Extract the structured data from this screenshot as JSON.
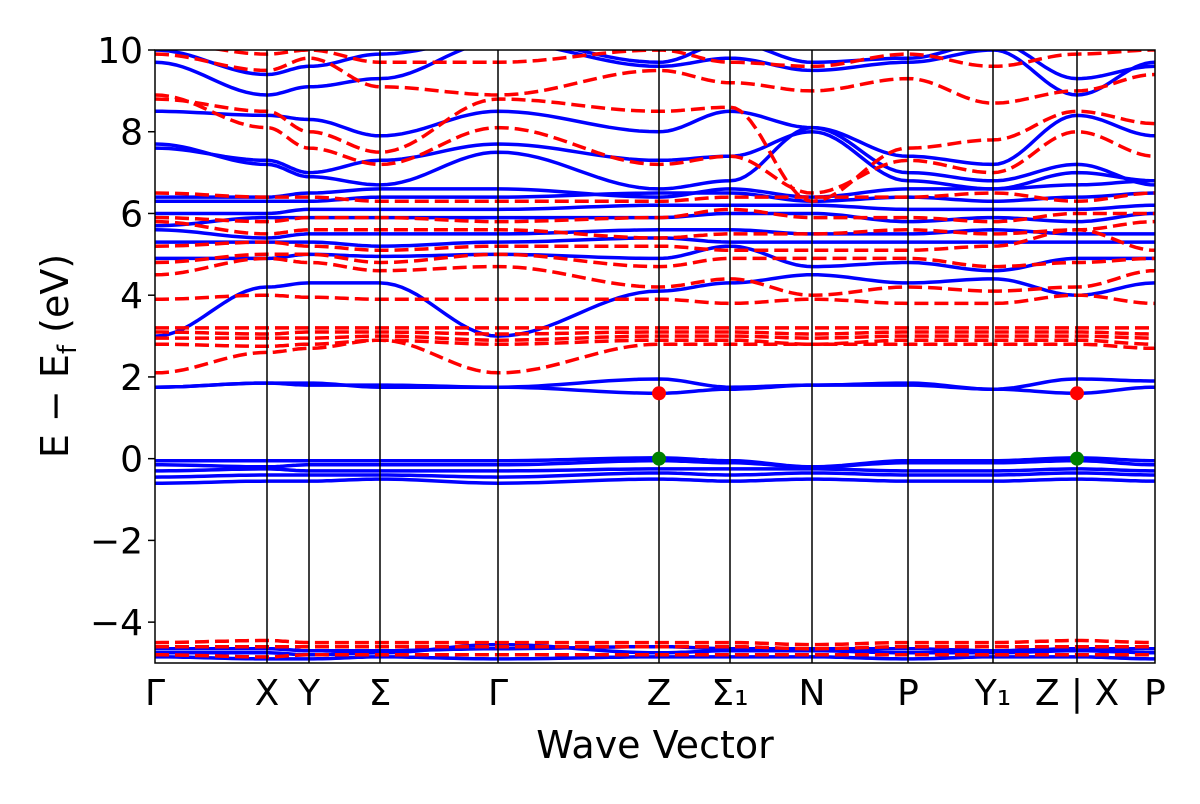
{
  "chart_data": {
    "type": "line",
    "title": "",
    "xlabel": "Wave Vector",
    "ylabel": "E − E",
    "ylabel_subscript": "f",
    "ylabel_unit": "(eV)",
    "ylim": [
      -5,
      10
    ],
    "yticks": [
      -4,
      -2,
      0,
      2,
      4,
      6,
      8,
      10
    ],
    "ytick_labels": [
      "−4",
      "−2",
      "0",
      "2",
      "4",
      "6",
      "8",
      "10"
    ],
    "kpoint_positions": [
      0,
      0.112,
      0.154,
      0.225,
      0.343,
      0.504,
      0.575,
      0.657,
      0.753,
      0.838,
      0.922,
      1.0
    ],
    "kpoint_labels": [
      "Γ",
      "X",
      "Y",
      "Σ",
      "Γ",
      "Z",
      "Σ₁",
      "N",
      "P",
      "Y₁",
      "Z | X",
      "P"
    ],
    "grid": false,
    "legend": "none",
    "series": [
      {
        "color": "#0000ff",
        "style": "solid",
        "bands": [
          [
            -4.85,
            -4.9,
            -4.9,
            -4.85,
            -4.9,
            -4.85,
            -4.85,
            -4.85,
            -4.9,
            -4.85,
            -4.85,
            -4.9
          ],
          [
            -4.75,
            -4.75,
            -4.8,
            -4.75,
            -4.55,
            -4.75,
            -4.7,
            -4.7,
            -4.75,
            -4.75,
            -4.7,
            -4.75
          ],
          [
            -4.65,
            -4.65,
            -4.7,
            -4.7,
            -4.65,
            -4.6,
            -4.65,
            -4.65,
            -4.65,
            -4.7,
            -4.65,
            -4.65
          ],
          [
            -0.6,
            -0.55,
            -0.55,
            -0.5,
            -0.6,
            -0.5,
            -0.55,
            -0.5,
            -0.55,
            -0.55,
            -0.5,
            -0.55
          ],
          [
            -0.45,
            -0.4,
            -0.4,
            -0.4,
            -0.45,
            -0.35,
            -0.4,
            -0.35,
            -0.4,
            -0.4,
            -0.35,
            -0.4
          ],
          [
            -0.3,
            -0.25,
            -0.3,
            -0.3,
            -0.3,
            -0.25,
            -0.25,
            -0.25,
            -0.3,
            -0.3,
            -0.25,
            -0.3
          ],
          [
            -0.15,
            -0.2,
            -0.15,
            -0.15,
            -0.15,
            -0.05,
            -0.1,
            -0.2,
            -0.1,
            -0.1,
            -0.05,
            -0.15
          ],
          [
            -0.05,
            -0.05,
            -0.05,
            -0.05,
            -0.05,
            0.02,
            -0.05,
            -0.2,
            -0.05,
            -0.05,
            0.02,
            -0.05
          ],
          [
            1.75,
            1.85,
            1.85,
            1.75,
            1.75,
            1.95,
            1.75,
            1.8,
            1.85,
            1.7,
            1.95,
            1.9
          ],
          [
            1.75,
            1.85,
            1.8,
            1.8,
            1.75,
            1.6,
            1.7,
            1.8,
            1.8,
            1.7,
            1.6,
            1.75
          ],
          [
            3.0,
            4.2,
            4.3,
            4.3,
            3.0,
            4.1,
            4.3,
            4.5,
            4.3,
            4.4,
            4.0,
            4.3
          ],
          [
            4.9,
            4.9,
            5.0,
            4.95,
            5.0,
            4.9,
            5.2,
            4.7,
            4.8,
            4.6,
            4.9,
            4.9
          ],
          [
            5.3,
            5.3,
            5.3,
            5.2,
            5.3,
            5.4,
            5.3,
            5.3,
            5.3,
            5.3,
            5.3,
            5.3
          ],
          [
            5.6,
            5.4,
            5.5,
            5.5,
            5.5,
            5.6,
            5.6,
            5.5,
            5.5,
            5.6,
            5.5,
            5.5
          ],
          [
            5.7,
            5.9,
            5.9,
            5.9,
            5.9,
            5.9,
            6.0,
            6.0,
            5.8,
            5.9,
            5.8,
            6.0
          ],
          [
            6.0,
            6.0,
            6.1,
            6.1,
            6.1,
            6.2,
            6.2,
            6.2,
            6.1,
            6.1,
            6.1,
            6.2
          ],
          [
            6.3,
            6.3,
            6.3,
            6.4,
            6.4,
            6.5,
            6.5,
            6.3,
            6.4,
            6.3,
            6.4,
            6.5
          ],
          [
            6.4,
            6.4,
            6.5,
            6.6,
            6.6,
            6.4,
            6.6,
            6.4,
            6.6,
            6.6,
            6.7,
            6.8
          ],
          [
            7.7,
            7.2,
            6.9,
            6.7,
            7.5,
            6.6,
            6.8,
            8.1,
            7.0,
            6.8,
            7.2,
            6.7
          ],
          [
            7.6,
            7.3,
            7.0,
            7.3,
            7.7,
            7.3,
            7.4,
            8.0,
            6.8,
            6.6,
            7.0,
            6.8
          ],
          [
            8.5,
            8.4,
            8.3,
            7.9,
            8.5,
            8.0,
            8.5,
            8.1,
            7.4,
            7.2,
            8.4,
            7.9
          ],
          [
            9.7,
            8.9,
            9.1,
            9.3,
            10.2,
            9.6,
            9.8,
            9.5,
            9.7,
            10.0,
            8.9,
            9.7
          ],
          [
            10.0,
            9.4,
            9.6,
            9.9,
            10.3,
            9.7,
            10.2,
            9.7,
            9.8,
            10.2,
            9.3,
            9.6
          ]
        ]
      },
      {
        "color": "#ff0000",
        "style": "dashed",
        "bands": [
          [
            -4.8,
            -4.85,
            -4.8,
            -4.8,
            -4.8,
            -4.8,
            -4.8,
            -4.8,
            -4.8,
            -4.8,
            -4.8,
            -4.8
          ],
          [
            -4.6,
            -4.6,
            -4.6,
            -4.6,
            -4.6,
            -4.6,
            -4.6,
            -4.65,
            -4.6,
            -4.6,
            -4.6,
            -4.6
          ],
          [
            -4.5,
            -4.45,
            -4.5,
            -4.5,
            -4.5,
            -4.5,
            -4.5,
            -4.55,
            -4.5,
            -4.5,
            -4.45,
            -4.5
          ],
          [
            2.1,
            2.6,
            2.7,
            2.9,
            2.1,
            2.8,
            2.8,
            2.8,
            2.8,
            2.8,
            2.8,
            2.7
          ],
          [
            2.8,
            2.75,
            2.8,
            2.9,
            2.8,
            2.9,
            2.9,
            2.8,
            2.9,
            2.9,
            2.9,
            2.8
          ],
          [
            2.95,
            2.95,
            2.95,
            3.0,
            2.9,
            3.0,
            3.0,
            2.95,
            3.0,
            3.0,
            3.0,
            2.95
          ],
          [
            3.1,
            3.05,
            3.1,
            3.1,
            3.05,
            3.1,
            3.1,
            3.05,
            3.1,
            3.1,
            3.1,
            3.05
          ],
          [
            3.2,
            3.2,
            3.2,
            3.2,
            3.2,
            3.2,
            3.2,
            3.2,
            3.2,
            3.2,
            3.2,
            3.2
          ],
          [
            3.9,
            4.0,
            3.95,
            3.9,
            3.9,
            3.9,
            3.8,
            3.9,
            3.8,
            3.8,
            4.0,
            3.8
          ],
          [
            4.5,
            4.9,
            4.8,
            4.6,
            4.7,
            4.2,
            4.4,
            4.0,
            4.2,
            4.1,
            4.2,
            4.6
          ],
          [
            4.8,
            5.0,
            5.0,
            4.8,
            5.0,
            4.7,
            4.9,
            4.9,
            4.9,
            4.7,
            4.8,
            4.9
          ],
          [
            5.2,
            5.3,
            5.2,
            5.1,
            5.2,
            5.2,
            5.1,
            5.1,
            5.1,
            5.2,
            5.6,
            5.1
          ],
          [
            5.8,
            5.5,
            5.6,
            5.6,
            5.6,
            5.4,
            5.5,
            5.5,
            5.6,
            5.5,
            5.6,
            5.8
          ],
          [
            5.9,
            5.8,
            5.9,
            5.9,
            5.8,
            5.9,
            6.1,
            5.9,
            5.9,
            5.8,
            6.0,
            6.0
          ],
          [
            6.5,
            6.4,
            6.4,
            6.3,
            6.3,
            6.3,
            6.4,
            6.4,
            6.4,
            6.5,
            6.3,
            6.5
          ],
          [
            8.9,
            8.1,
            7.6,
            7.2,
            8.1,
            7.2,
            7.4,
            6.5,
            7.3,
            7.0,
            8.0,
            7.4
          ],
          [
            8.8,
            8.5,
            8.0,
            7.5,
            8.8,
            8.5,
            8.6,
            6.3,
            7.6,
            7.8,
            8.5,
            8.2
          ],
          [
            9.9,
            9.5,
            9.8,
            9.1,
            8.9,
            9.5,
            9.2,
            9.0,
            9.3,
            8.7,
            9.0,
            9.4
          ],
          [
            10.2,
            9.9,
            10.0,
            9.7,
            9.7,
            10.0,
            9.7,
            9.6,
            9.9,
            9.6,
            9.9,
            10.0
          ]
        ]
      }
    ],
    "markers": [
      {
        "kpoint": "Z",
        "energy": 1.6,
        "color": "#ff0000"
      },
      {
        "kpoint": "Z",
        "energy": 0.0,
        "color": "#008000"
      },
      {
        "kpoint": "Z | X",
        "energy": 1.6,
        "color": "#ff0000"
      },
      {
        "kpoint": "Z | X",
        "energy": 0.0,
        "color": "#008000"
      }
    ]
  }
}
